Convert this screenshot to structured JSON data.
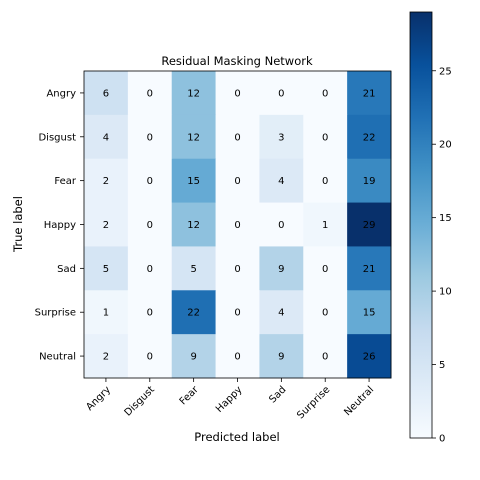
{
  "chart_data": {
    "type": "heatmap",
    "title": "Residual Masking Network",
    "xlabel": "Predicted label",
    "ylabel": "True label",
    "x_categories": [
      "Angry",
      "Disgust",
      "Fear",
      "Happy",
      "Sad",
      "Surprise",
      "Neutral"
    ],
    "y_categories": [
      "Angry",
      "Disgust",
      "Fear",
      "Happy",
      "Sad",
      "Surprise",
      "Neutral"
    ],
    "values": [
      [
        6,
        0,
        12,
        0,
        0,
        0,
        21
      ],
      [
        4,
        0,
        12,
        0,
        3,
        0,
        22
      ],
      [
        2,
        0,
        15,
        0,
        4,
        0,
        19
      ],
      [
        2,
        0,
        12,
        0,
        0,
        1,
        29
      ],
      [
        5,
        0,
        5,
        0,
        9,
        0,
        21
      ],
      [
        1,
        0,
        22,
        0,
        4,
        0,
        15
      ],
      [
        2,
        0,
        9,
        0,
        9,
        0,
        26
      ]
    ],
    "colormap": "Blues",
    "colorbar": {
      "range": [
        0,
        29
      ],
      "ticks": [
        0,
        5,
        10,
        15,
        20,
        25
      ]
    },
    "x_tick_rotation": 45,
    "grid": false
  }
}
